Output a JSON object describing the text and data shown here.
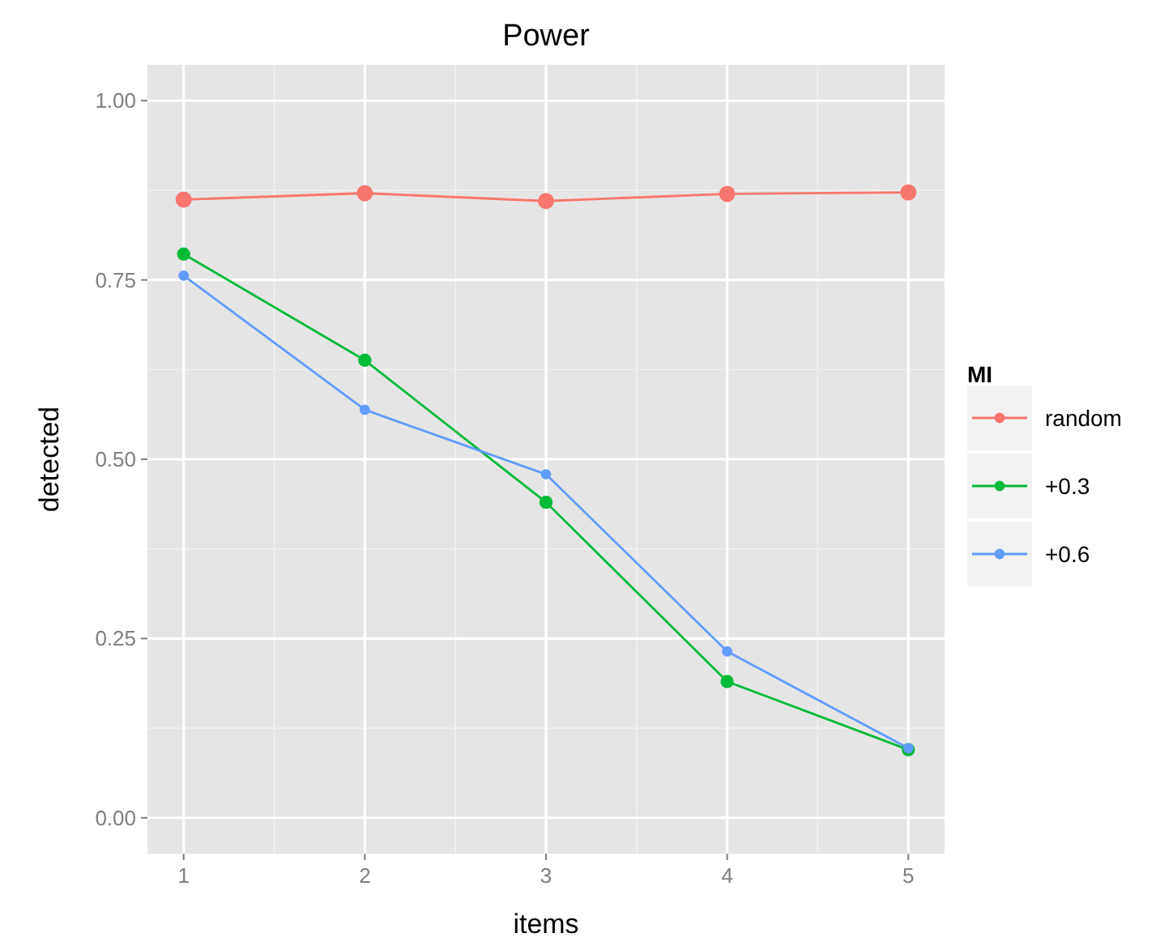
{
  "chart_data": {
    "type": "line",
    "title": "Power",
    "xlabel": "items",
    "ylabel": "detected",
    "legend_title": "MI",
    "x": [
      1,
      2,
      3,
      4,
      5
    ],
    "xlim": [
      0.8,
      5.2
    ],
    "xticks": [
      1,
      2,
      3,
      4,
      5
    ],
    "ylim": [
      -0.05,
      1.05
    ],
    "yticks": [
      {
        "value": 0,
        "label": "0.00"
      },
      {
        "value": 0.25,
        "label": "0.25"
      },
      {
        "value": 0.5,
        "label": "0.50"
      },
      {
        "value": 0.75,
        "label": "0.75"
      },
      {
        "value": 1,
        "label": "1.00"
      }
    ],
    "grid": true,
    "legend": "right",
    "marker": "circle",
    "series": [
      {
        "name": "random",
        "color": "#f8766d",
        "values": [
          0.862,
          0.871,
          0.86,
          0.87,
          0.872
        ]
      },
      {
        "name": "+0.3",
        "color": "#00ba38",
        "values": [
          0.786,
          0.638,
          0.44,
          0.19,
          0.095
        ]
      },
      {
        "name": "+0.6",
        "color": "#619cff",
        "values": [
          0.756,
          0.569,
          0.479,
          0.232,
          0.097
        ]
      }
    ]
  }
}
